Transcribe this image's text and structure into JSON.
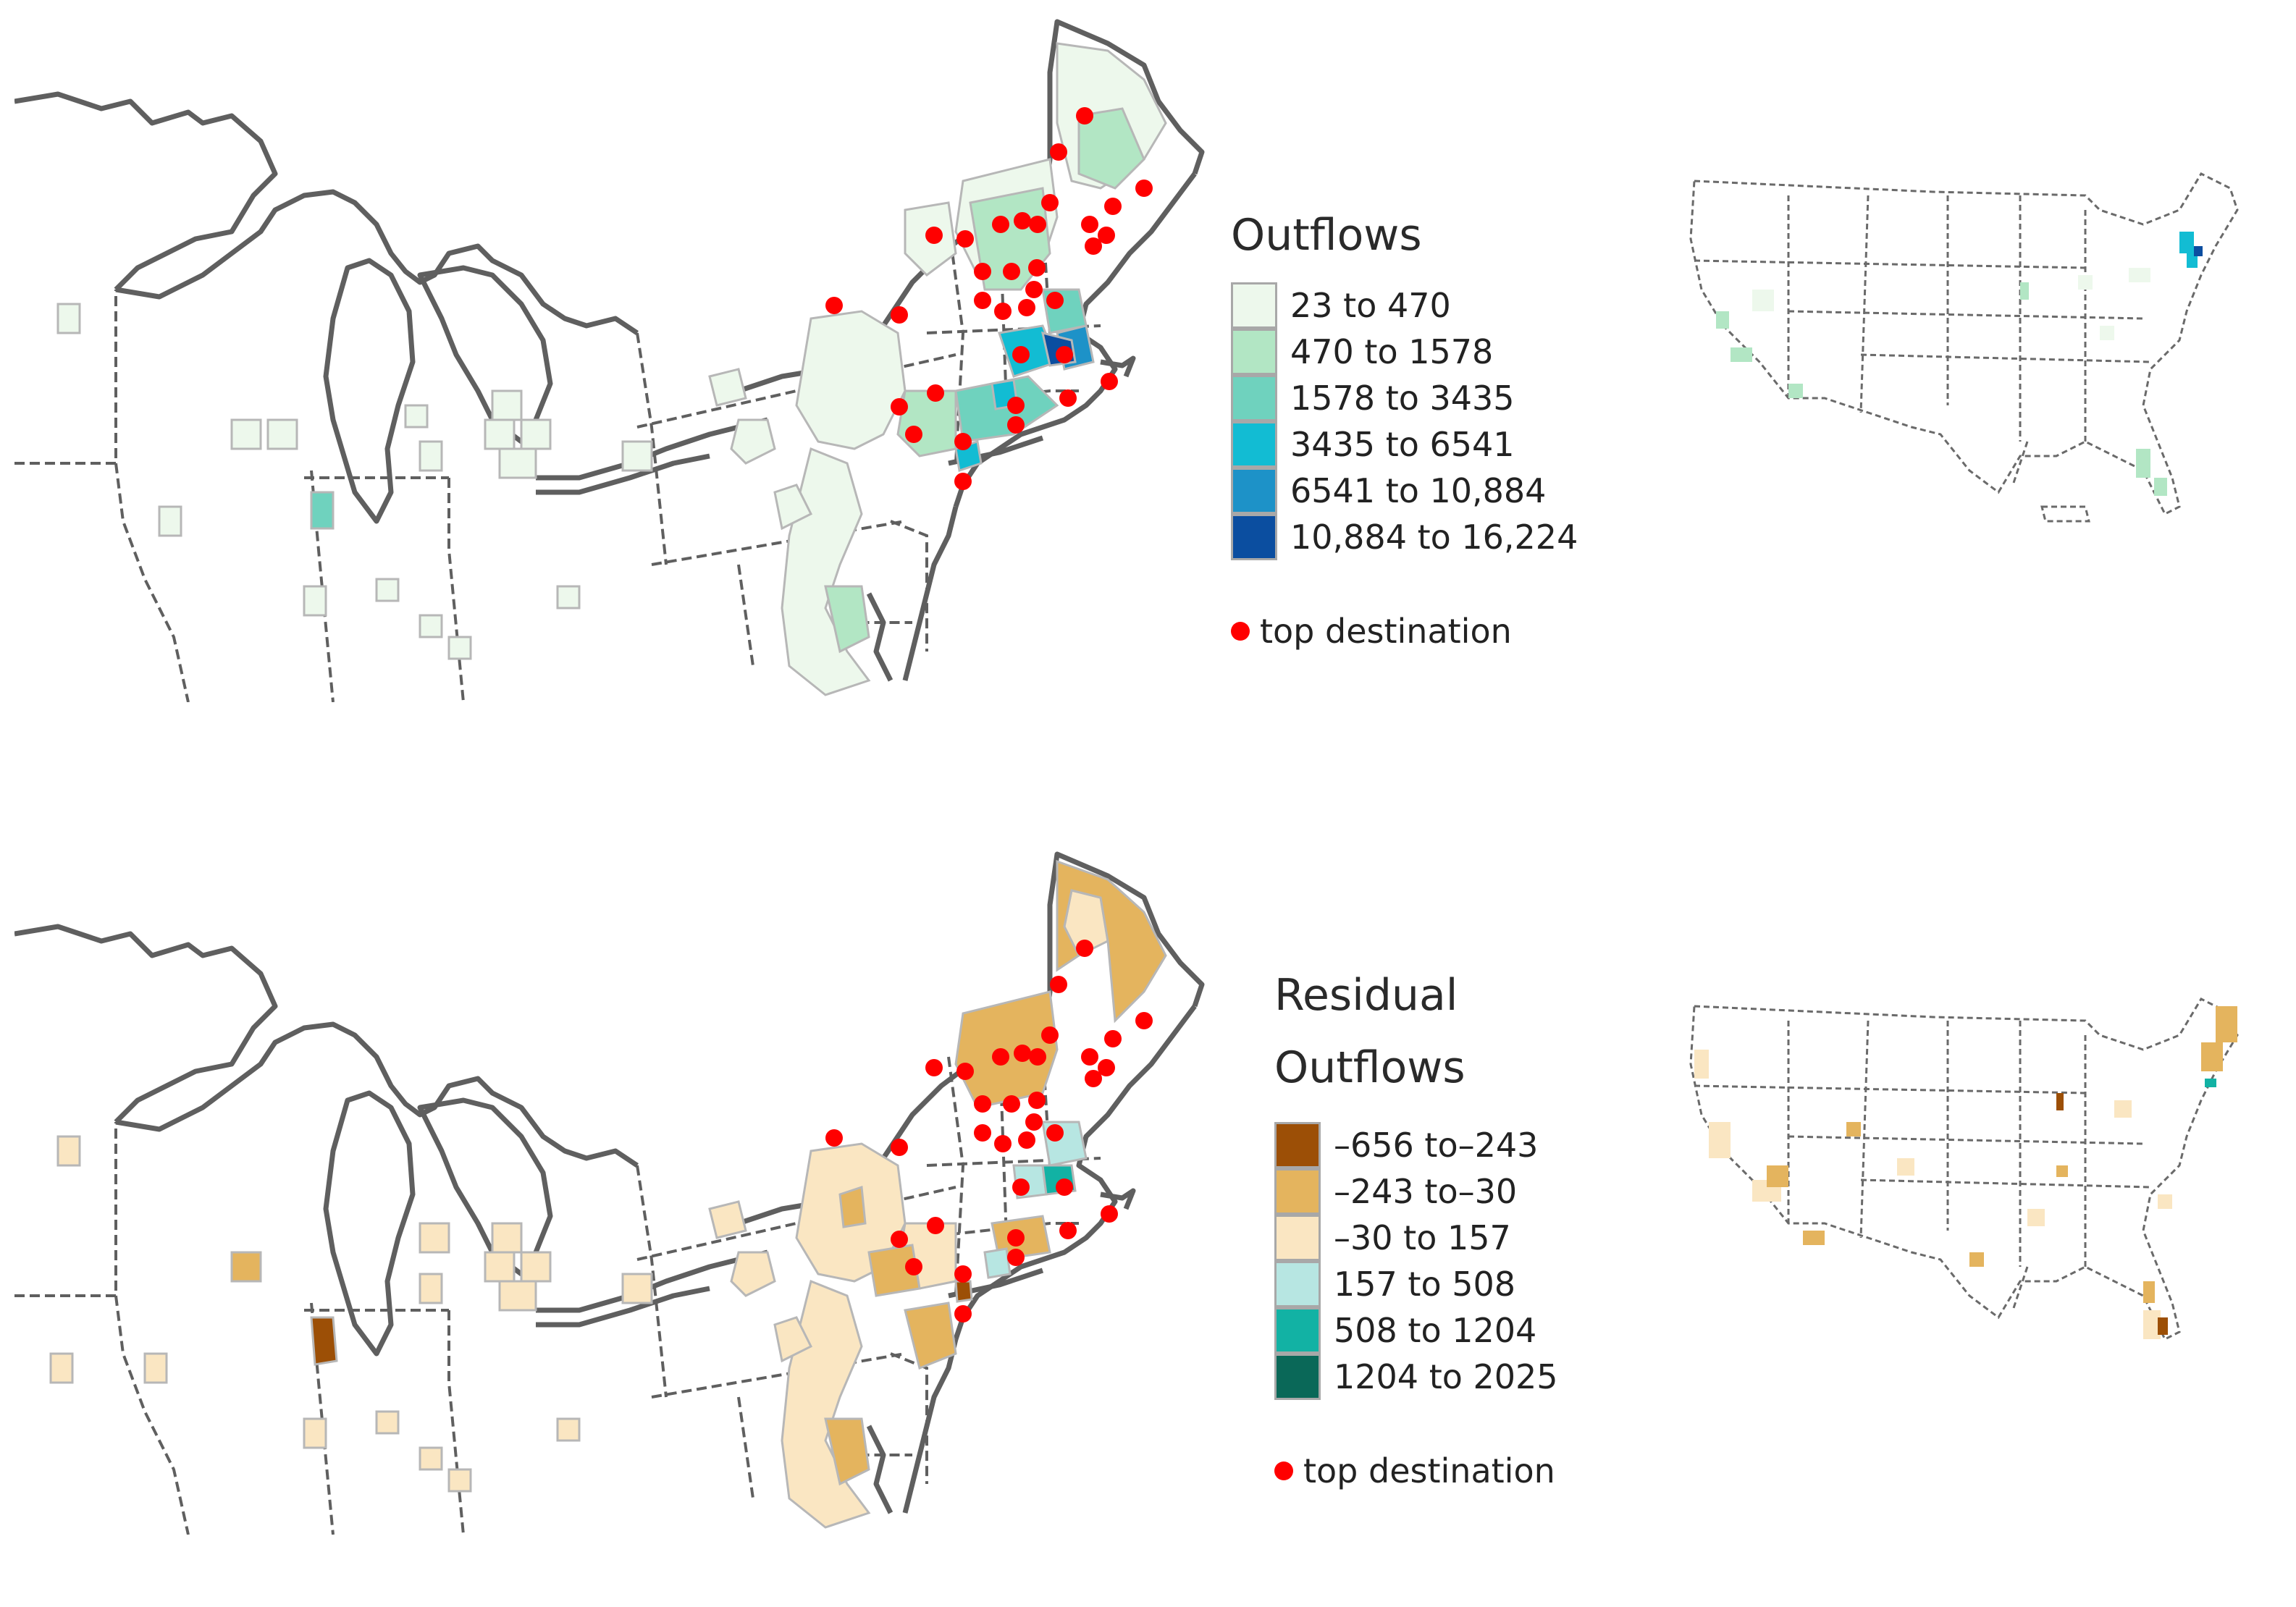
{
  "panels": [
    {
      "id": "outflows",
      "legend": {
        "title_lines": [
          "Outflows"
        ],
        "classes": [
          {
            "label": "23 to 470",
            "color": "#edf8ec"
          },
          {
            "label": "470 to 1578",
            "color": "#b2e6c4"
          },
          {
            "label": "1578  to 3435",
            "color": "#6fd2be"
          },
          {
            "label": "3435  to 6541",
            "color": "#12bcd3"
          },
          {
            "label": "6541  to 10,884",
            "color": "#1d92c8"
          },
          {
            "label": "10,884 to 16,224",
            "color": "#0b4ea0"
          }
        ],
        "dot_label": "top destination",
        "dot_color": "#ff0000"
      }
    },
    {
      "id": "residual",
      "legend": {
        "title_lines": [
          "Residual",
          "Outflows"
        ],
        "classes": [
          {
            "label": "–656 to–243",
            "color": "#9c4f06"
          },
          {
            "label": "–243 to–30",
            "color": "#e4b45e"
          },
          {
            "label": "–30 to 157",
            "color": "#fae6c2"
          },
          {
            "label": "157 to 508",
            "color": "#b7e6e2"
          },
          {
            "label": "508 to 1204",
            "color": "#12b2a4"
          },
          {
            "label": "1204  to 2025",
            "color": "#0a6858"
          }
        ],
        "dot_label": "top destination",
        "dot_color": "#ff0000"
      }
    }
  ]
}
